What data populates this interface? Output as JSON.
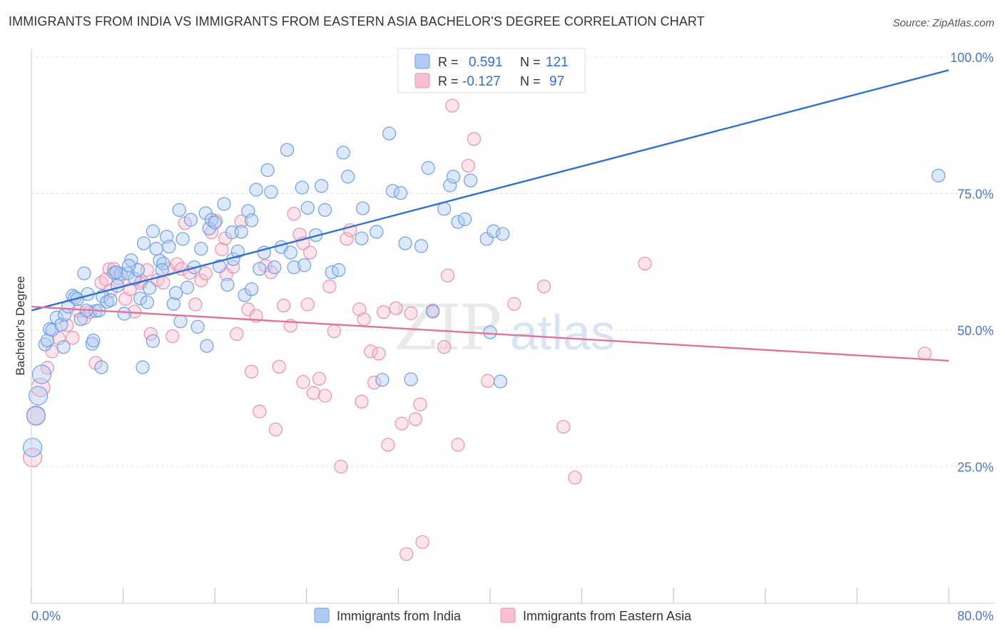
{
  "header": {
    "title": "IMMIGRANTS FROM INDIA VS IMMIGRANTS FROM EASTERN ASIA BACHELOR'S DEGREE CORRELATION CHART",
    "source": "Source: ZipAtlas.com"
  },
  "watermark": {
    "bold": "ZIP",
    "light": "atlas"
  },
  "legend": {
    "r_label": "R =",
    "n_label": "N =",
    "rows": [
      {
        "r": "0.591",
        "n": "121"
      },
      {
        "r": "-0.127",
        "n": "97"
      }
    ]
  },
  "colors": {
    "india_fill": "#aecbf2",
    "india_stroke": "#6d9ee6",
    "india_line": "#2f6fd0",
    "asia_fill": "#f7bfd2",
    "asia_stroke": "#ea8fb0",
    "asia_line": "#e0739a",
    "grid": "#dddddd",
    "axis_text": "#4a78c2"
  },
  "chart_data": {
    "type": "scatter",
    "title": "IMMIGRANTS FROM INDIA VS IMMIGRANTS FROM EASTERN ASIA BACHELOR'S DEGREE CORRELATION CHART",
    "xlabel": "",
    "ylabel": "Bachelor's Degree",
    "xlim": [
      0,
      80
    ],
    "ylim": [
      0,
      100
    ],
    "x_tick_labels": [
      "0.0%",
      "80.0%"
    ],
    "y_ticks": [
      {
        "value": 25,
        "label": "25.0%"
      },
      {
        "value": 50,
        "label": "50.0%"
      },
      {
        "value": 75,
        "label": "75.0%"
      },
      {
        "value": 100,
        "label": "100.0%"
      }
    ],
    "grid": true,
    "legend_position": "top-center",
    "series": [
      {
        "name": "Immigrants from India",
        "r": 0.591,
        "n": 121,
        "trendline": [
          [
            0,
            53.6
          ],
          [
            80,
            97.6
          ]
        ],
        "points": [
          [
            0.1,
            28.5
          ],
          [
            0.4,
            34.3
          ],
          [
            0.6,
            38.0
          ],
          [
            0.9,
            41.9
          ],
          [
            1.2,
            47.4
          ],
          [
            1.4,
            48.1
          ],
          [
            1.6,
            50.2
          ],
          [
            1.8,
            50.0
          ],
          [
            2.2,
            52.3
          ],
          [
            2.6,
            51.0
          ],
          [
            2.9,
            52.8
          ],
          [
            3.2,
            54.3
          ],
          [
            3.6,
            56.3
          ],
          [
            3.8,
            56.0
          ],
          [
            4.0,
            55.7
          ],
          [
            4.3,
            52.0
          ],
          [
            4.6,
            60.4
          ],
          [
            4.9,
            56.6
          ],
          [
            5.3,
            47.5
          ],
          [
            5.6,
            53.5
          ],
          [
            5.9,
            53.6
          ],
          [
            6.2,
            56.2
          ],
          [
            6.6,
            55.2
          ],
          [
            6.9,
            55.5
          ],
          [
            7.2,
            60.5
          ],
          [
            7.5,
            58.1
          ],
          [
            7.8,
            60.3
          ],
          [
            8.1,
            53.0
          ],
          [
            8.4,
            60.4
          ],
          [
            8.7,
            62.8
          ],
          [
            9.0,
            59.4
          ],
          [
            9.3,
            61.0
          ],
          [
            9.5,
            55.8
          ],
          [
            9.8,
            65.9
          ],
          [
            10.1,
            55.1
          ],
          [
            10.3,
            57.7
          ],
          [
            10.6,
            68.1
          ],
          [
            10.9,
            64.9
          ],
          [
            11.2,
            62.7
          ],
          [
            11.5,
            62.2
          ],
          [
            11.8,
            67.1
          ],
          [
            12.0,
            65.3
          ],
          [
            12.4,
            54.8
          ],
          [
            12.6,
            56.8
          ],
          [
            12.9,
            72.0
          ],
          [
            13.2,
            66.7
          ],
          [
            13.6,
            57.8
          ],
          [
            13.9,
            70.2
          ],
          [
            14.2,
            61.5
          ],
          [
            14.5,
            50.6
          ],
          [
            14.8,
            64.9
          ],
          [
            15.2,
            71.4
          ],
          [
            15.5,
            68.6
          ],
          [
            15.7,
            70.2
          ],
          [
            16.0,
            69.7
          ],
          [
            16.4,
            61.7
          ],
          [
            16.8,
            73.1
          ],
          [
            17.1,
            58.3
          ],
          [
            17.5,
            67.9
          ],
          [
            17.6,
            63.0
          ],
          [
            18.0,
            64.4
          ],
          [
            18.3,
            68.0
          ],
          [
            18.6,
            56.4
          ],
          [
            18.9,
            71.8
          ],
          [
            19.2,
            70.1
          ],
          [
            19.6,
            75.7
          ],
          [
            19.9,
            61.2
          ],
          [
            20.3,
            64.2
          ],
          [
            20.6,
            79.3
          ],
          [
            20.9,
            75.3
          ],
          [
            21.2,
            61.5
          ],
          [
            21.8,
            65.2
          ],
          [
            22.3,
            83.0
          ],
          [
            22.6,
            64.2
          ],
          [
            22.9,
            61.5
          ],
          [
            23.6,
            76.1
          ],
          [
            23.8,
            61.9
          ],
          [
            24.1,
            72.4
          ],
          [
            24.8,
            67.4
          ],
          [
            25.3,
            76.4
          ],
          [
            25.6,
            72.0
          ],
          [
            26.2,
            60.6
          ],
          [
            26.8,
            61.0
          ],
          [
            27.6,
            78.1
          ],
          [
            27.2,
            82.5
          ],
          [
            28.8,
            66.8
          ],
          [
            28.9,
            72.3
          ],
          [
            30.1,
            68.0
          ],
          [
            30.6,
            40.9
          ],
          [
            31.2,
            86.0
          ],
          [
            31.5,
            75.5
          ],
          [
            32.2,
            75.1
          ],
          [
            32.6,
            65.9
          ],
          [
            33.1,
            41.0
          ],
          [
            34.0,
            65.4
          ],
          [
            34.6,
            79.7
          ],
          [
            35.0,
            53.4
          ],
          [
            36.0,
            72.2
          ],
          [
            36.5,
            76.5
          ],
          [
            36.8,
            78.1
          ],
          [
            37.2,
            69.8
          ],
          [
            38.3,
            77.4
          ],
          [
            37.8,
            70.3
          ],
          [
            39.7,
            66.7
          ],
          [
            40.0,
            49.6
          ],
          [
            40.3,
            68.1
          ],
          [
            40.9,
            40.6
          ],
          [
            41.1,
            67.6
          ],
          [
            9.7,
            43.2
          ],
          [
            10.6,
            48.0
          ],
          [
            2.8,
            46.9
          ],
          [
            6.1,
            43.2
          ],
          [
            15.3,
            47.1
          ],
          [
            19.2,
            57.5
          ],
          [
            7.4,
            60.6
          ],
          [
            5.4,
            48.1
          ],
          [
            4.8,
            53.6
          ],
          [
            13.0,
            51.6
          ],
          [
            11.4,
            61.0
          ],
          [
            8.5,
            61.8
          ],
          [
            79.1,
            78.3
          ]
        ]
      },
      {
        "name": "Immigrants from Eastern Asia",
        "r": -0.127,
        "n": 97,
        "trendline": [
          [
            0,
            54.3
          ],
          [
            80,
            44.4
          ]
        ],
        "points": [
          [
            0.1,
            26.7
          ],
          [
            0.4,
            34.4
          ],
          [
            0.8,
            39.5
          ],
          [
            1.4,
            43.1
          ],
          [
            1.8,
            46.1
          ],
          [
            2.4,
            48.5
          ],
          [
            3.1,
            50.9
          ],
          [
            3.6,
            48.6
          ],
          [
            4.1,
            53.5
          ],
          [
            4.6,
            52.2
          ],
          [
            5.1,
            53.3
          ],
          [
            5.6,
            44.0
          ],
          [
            6.1,
            58.7
          ],
          [
            6.5,
            59.3
          ],
          [
            6.8,
            61.2
          ],
          [
            7.2,
            61.2
          ],
          [
            7.6,
            59.5
          ],
          [
            8.2,
            55.7
          ],
          [
            8.6,
            57.5
          ],
          [
            9.0,
            53.4
          ],
          [
            9.6,
            59.0
          ],
          [
            10.1,
            61.0
          ],
          [
            10.4,
            49.3
          ],
          [
            11.0,
            59.2
          ],
          [
            11.5,
            58.7
          ],
          [
            11.9,
            61.2
          ],
          [
            12.3,
            48.9
          ],
          [
            12.7,
            62.1
          ],
          [
            13.1,
            61.2
          ],
          [
            13.4,
            69.6
          ],
          [
            13.8,
            60.5
          ],
          [
            14.3,
            54.7
          ],
          [
            14.8,
            59.1
          ],
          [
            15.2,
            60.4
          ],
          [
            15.7,
            67.9
          ],
          [
            16.1,
            70.0
          ],
          [
            16.6,
            64.8
          ],
          [
            17.0,
            60.2
          ],
          [
            17.6,
            61.6
          ],
          [
            17.9,
            49.3
          ],
          [
            18.3,
            69.9
          ],
          [
            18.9,
            53.8
          ],
          [
            19.2,
            42.4
          ],
          [
            19.6,
            52.6
          ],
          [
            19.9,
            35.1
          ],
          [
            20.4,
            61.8
          ],
          [
            20.9,
            60.6
          ],
          [
            21.3,
            31.8
          ],
          [
            21.6,
            43.3
          ],
          [
            22.0,
            54.5
          ],
          [
            22.6,
            50.8
          ],
          [
            22.9,
            71.3
          ],
          [
            23.4,
            67.5
          ],
          [
            23.7,
            65.9
          ],
          [
            24.1,
            54.7
          ],
          [
            24.3,
            64.2
          ],
          [
            24.6,
            38.5
          ],
          [
            25.1,
            41.1
          ],
          [
            25.6,
            38.0
          ],
          [
            26.0,
            58.0
          ],
          [
            26.4,
            49.8
          ],
          [
            27.0,
            25.0
          ],
          [
            27.5,
            66.7
          ],
          [
            27.8,
            68.3
          ],
          [
            28.6,
            53.8
          ],
          [
            28.8,
            36.9
          ],
          [
            29.0,
            52.0
          ],
          [
            29.6,
            46.1
          ],
          [
            29.9,
            40.4
          ],
          [
            30.3,
            45.7
          ],
          [
            30.7,
            53.3
          ],
          [
            31.1,
            29.0
          ],
          [
            31.8,
            54.0
          ],
          [
            32.3,
            32.9
          ],
          [
            32.7,
            9.0
          ],
          [
            33.1,
            53.1
          ],
          [
            33.5,
            33.7
          ],
          [
            33.9,
            36.4
          ],
          [
            34.1,
            11.2
          ],
          [
            35.0,
            53.6
          ],
          [
            36.0,
            46.9
          ],
          [
            36.3,
            60.0
          ],
          [
            36.7,
            91.1
          ],
          [
            37.2,
            29.0
          ],
          [
            38.1,
            80.1
          ],
          [
            38.6,
            85.0
          ],
          [
            39.8,
            40.7
          ],
          [
            42.1,
            54.8
          ],
          [
            44.7,
            58.0
          ],
          [
            46.4,
            32.3
          ],
          [
            47.4,
            23.0
          ],
          [
            53.5,
            62.2
          ],
          [
            77.9,
            45.7
          ],
          [
            23.7,
            40.5
          ],
          [
            16.9,
            66.8
          ],
          [
            9.5,
            58.6
          ],
          [
            6.9,
            57.2
          ]
        ]
      }
    ]
  }
}
